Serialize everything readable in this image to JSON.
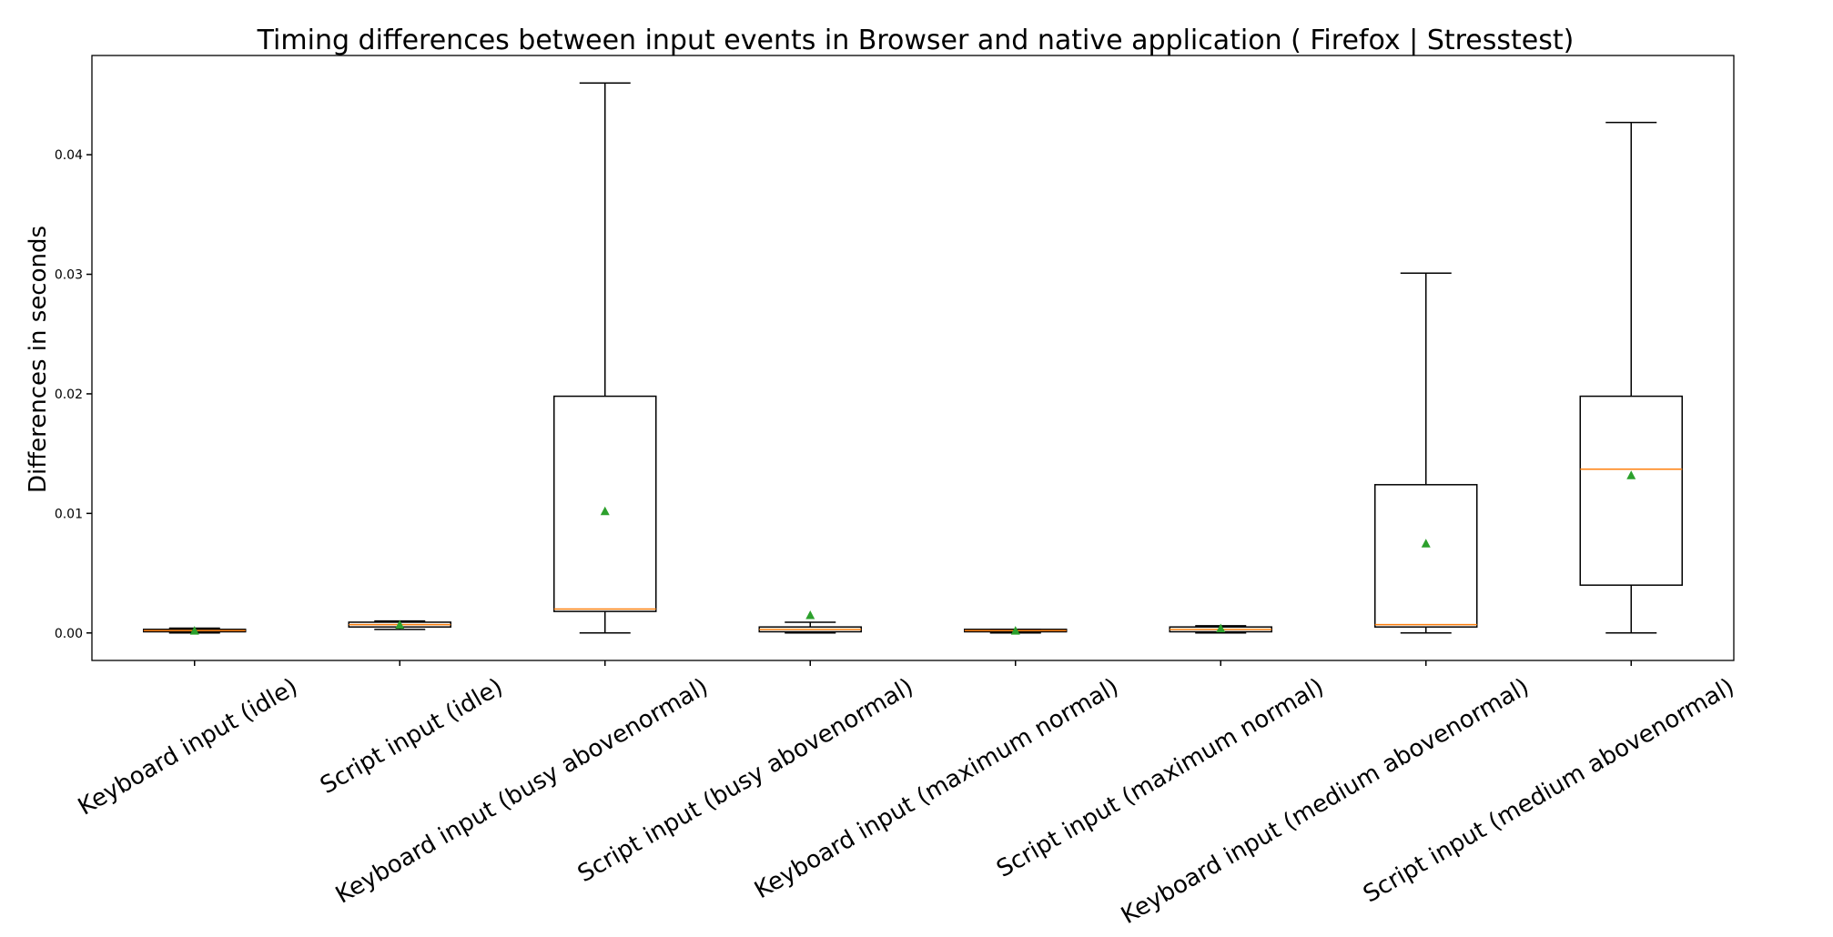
{
  "chart_data": {
    "type": "box",
    "title": "Timing differences between input events in Browser and native application ( Firefox | Stresstest)",
    "ylabel": "Differences in seconds",
    "xlabel": "",
    "ylim": [
      -0.0023,
      0.0483
    ],
    "yticks": [
      "0.00",
      "0.01",
      "0.02",
      "0.03",
      "0.04"
    ],
    "ytick_values": [
      0,
      0.01,
      0.02,
      0.03,
      0.04
    ],
    "grid": false,
    "colors": {
      "box": "#000000",
      "median": "#ff7f0e",
      "mean": "#2ca02c"
    },
    "categories": [
      "Keyboard input (idle)",
      "Script input (idle)",
      "Keyboard input (busy abovenormal)",
      "Script input (busy abovenormal)",
      "Keyboard input (maximum normal)",
      "Script input (maximum normal)",
      "Keyboard input (medium abovenormal)",
      "Script input (medium abovenormal)"
    ],
    "boxes": [
      {
        "whislo": 0.0,
        "q1": 0.0001,
        "med": 0.0002,
        "q3": 0.0003,
        "whishi": 0.0004,
        "mean": 0.0002
      },
      {
        "whislo": 0.0003,
        "q1": 0.0005,
        "med": 0.0007,
        "q3": 0.0009,
        "whishi": 0.001,
        "mean": 0.0007
      },
      {
        "whislo": 0.0,
        "q1": 0.0018,
        "med": 0.002,
        "q3": 0.0198,
        "whishi": 0.046,
        "mean": 0.0102
      },
      {
        "whislo": 0.0,
        "q1": 0.0001,
        "med": 0.0003,
        "q3": 0.0005,
        "whishi": 0.0009,
        "mean": 0.0015
      },
      {
        "whislo": 0.0,
        "q1": 0.0001,
        "med": 0.0002,
        "q3": 0.0003,
        "whishi": 0.0003,
        "mean": 0.0002
      },
      {
        "whislo": 0.0,
        "q1": 0.0001,
        "med": 0.0003,
        "q3": 0.0005,
        "whishi": 0.0006,
        "mean": 0.0004
      },
      {
        "whislo": 0.0,
        "q1": 0.0005,
        "med": 0.0007,
        "q3": 0.0124,
        "whishi": 0.0301,
        "mean": 0.0075
      },
      {
        "whislo": 0.0,
        "q1": 0.004,
        "med": 0.0137,
        "q3": 0.0198,
        "whishi": 0.0427,
        "mean": 0.0132
      }
    ]
  }
}
